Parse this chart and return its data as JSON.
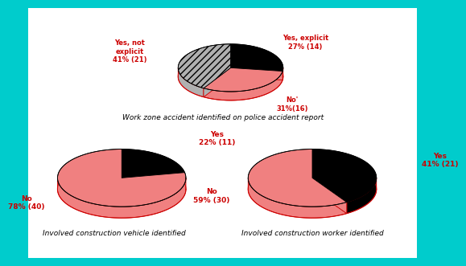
{
  "background_color": "#ffffff",
  "outer_bg": "#00cccc",
  "pie1": {
    "labels": [
      "Yes, explicit\n27% (14)",
      "No'\n31%(16)",
      "Yes, not\nexplicit\n41% (21)"
    ],
    "values": [
      27,
      31,
      41
    ],
    "colors": [
      "#000000",
      "#f08080",
      "#b0b0b0"
    ],
    "hatch": [
      "",
      "",
      "////"
    ],
    "label_colors": [
      "#cc0000",
      "#cc0000",
      "#cc0000"
    ],
    "title": "Work zone accident identified on police accident report"
  },
  "pie2": {
    "labels": [
      "Yes\n22% (11)",
      "No\n78% (40)"
    ],
    "values": [
      22,
      78
    ],
    "colors": [
      "#000000",
      "#f08080"
    ],
    "hatch": [
      "",
      ""
    ],
    "label_colors": [
      "#cc0000",
      "#cc0000"
    ],
    "title": "Involved construction vehicle identified"
  },
  "pie3": {
    "labels": [
      "Yes\n41% (21)",
      "No\n59% (30)"
    ],
    "values": [
      41,
      59
    ],
    "colors": [
      "#000000",
      "#f08080"
    ],
    "hatch": [
      "",
      ""
    ],
    "label_colors": [
      "#cc0000",
      "#cc0000"
    ],
    "title": "Involved construction worker identified"
  }
}
